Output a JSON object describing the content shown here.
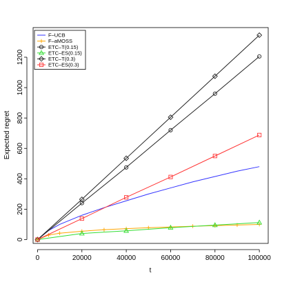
{
  "chart_data": {
    "type": "line",
    "xlabel": "t",
    "ylabel": "Expected regret",
    "xlim": [
      -2000,
      104000
    ],
    "ylim": [
      -25,
      1395
    ],
    "xticks": [
      0,
      20000,
      40000,
      60000,
      80000,
      100000
    ],
    "xtick_labels": [
      "0",
      "20000",
      "40000",
      "60000",
      "80000",
      "100000"
    ],
    "yticks": [
      0,
      200,
      400,
      600,
      800,
      1000,
      1200
    ],
    "ytick_labels": [
      "0",
      "200",
      "400",
      "600",
      "800",
      "1000",
      "1200"
    ],
    "grid": false,
    "legend_position": "top-left",
    "series": [
      {
        "name": "F–UCB",
        "color": "#3333ff",
        "marker": "none",
        "x": [
          0,
          5000,
          10000,
          20000,
          30000,
          40000,
          50000,
          60000,
          70000,
          80000,
          90000,
          100000
        ],
        "y": [
          0,
          60,
          100,
          160,
          210,
          255,
          300,
          340,
          380,
          415,
          450,
          480
        ]
      },
      {
        "name": "F–aMOSS",
        "color": "#ffa500",
        "marker": "plus",
        "x": [
          0,
          5000,
          10000,
          20000,
          30000,
          40000,
          50000,
          60000,
          70000,
          80000,
          90000,
          100000
        ],
        "y": [
          0,
          30,
          42,
          55,
          65,
          72,
          78,
          83,
          88,
          92,
          96,
          100
        ]
      },
      {
        "name": "ETC–T(0.15)",
        "color": "#222222",
        "marker": "circle",
        "x": [
          0,
          20000,
          40000,
          60000,
          80000,
          100000
        ],
        "y": [
          0,
          240,
          475,
          720,
          960,
          1205
        ]
      },
      {
        "name": "ETC–ES(0.15)",
        "color": "#33dd33",
        "marker": "triangle",
        "x": [
          0,
          20000,
          40000,
          60000,
          80000,
          100000
        ],
        "y": [
          0,
          40,
          58,
          78,
          95,
          112
        ]
      },
      {
        "name": "ETC–T(0.3)",
        "color": "#222222",
        "marker": "diamond",
        "x": [
          0,
          20000,
          40000,
          60000,
          80000,
          100000
        ],
        "y": [
          0,
          265,
          535,
          805,
          1075,
          1345
        ]
      },
      {
        "name": "ETC–ES(0.3)",
        "color": "#ff3333",
        "marker": "square",
        "x": [
          0,
          20000,
          40000,
          60000,
          80000,
          100000
        ],
        "y": [
          0,
          138,
          278,
          412,
          550,
          688
        ]
      }
    ]
  }
}
